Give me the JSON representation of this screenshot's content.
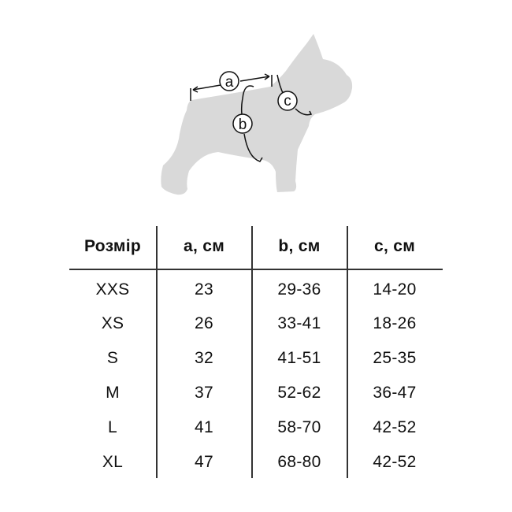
{
  "diagram": {
    "labels": {
      "a": "a",
      "b": "b",
      "c": "c"
    },
    "silhouette_color": "#d9d9d9"
  },
  "table": {
    "headers": [
      "Розмір",
      "a, см",
      "b, см",
      "c, см"
    ],
    "rows": [
      [
        "XXS",
        "23",
        "29-36",
        "14-20"
      ],
      [
        "XS",
        "26",
        "33-41",
        "18-26"
      ],
      [
        "S",
        "32",
        "41-51",
        "25-35"
      ],
      [
        "M",
        "37",
        "52-62",
        "36-47"
      ],
      [
        "L",
        "41",
        "58-70",
        "42-52"
      ],
      [
        "XL",
        "47",
        "68-80",
        "42-52"
      ]
    ]
  }
}
